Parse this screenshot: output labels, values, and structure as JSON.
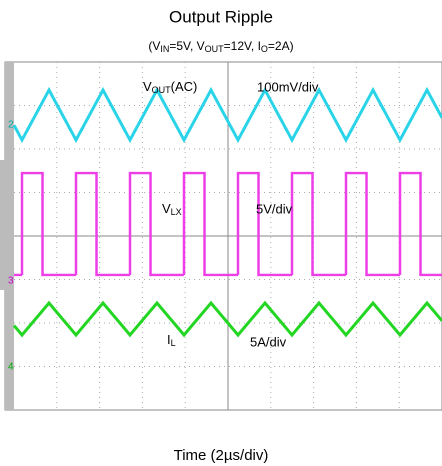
{
  "header": {
    "title": "Output Ripple",
    "subtitle": [
      "(V",
      "IN",
      "=5V, V",
      "OUT",
      "=12V, I",
      "O",
      "=2A)"
    ]
  },
  "traces": [
    {
      "label": [
        "V",
        "OUT",
        "(AC)"
      ],
      "scale": "100mV/div",
      "channel": "2"
    },
    {
      "label": [
        "V",
        "LX"
      ],
      "scale": "5V/div",
      "channel": "3"
    },
    {
      "label": [
        "I",
        "L"
      ],
      "scale": "5A/div",
      "channel": "4"
    }
  ],
  "x_axis_label": "Time (2µs/div)"
}
